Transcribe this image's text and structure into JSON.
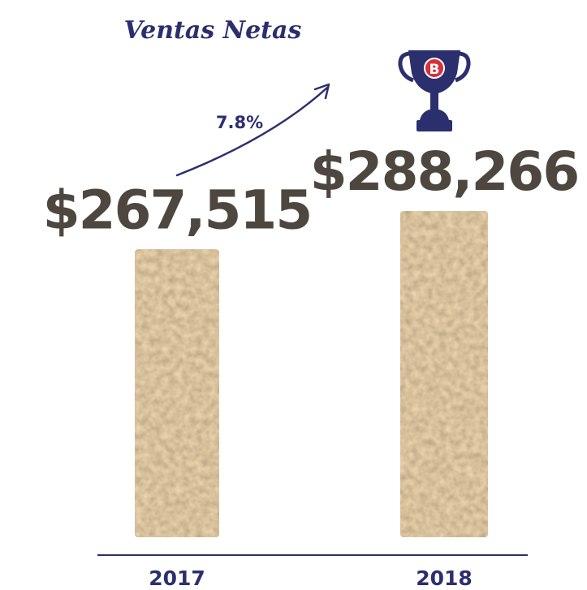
{
  "colors": {
    "navy": "#2c2f6e",
    "bar_fill": "#b9966b",
    "bar_light": "#ddc59f",
    "bar_dark": "#7d6447",
    "value_text": "#4d4740",
    "trophy_badge": "#d7303a"
  },
  "trophy": {
    "icon": "trophy-icon",
    "badge_letter": "B"
  },
  "chart_data": {
    "type": "bar",
    "title": "Ventas Netas",
    "categories": [
      "2017",
      "2018"
    ],
    "values": [
      267515,
      288266
    ],
    "value_labels": [
      "$267,515",
      "$288,266"
    ],
    "growth_label": "7.8%",
    "ylim": [
      0,
      288266
    ],
    "grid": false,
    "legend": "none",
    "xlabel": "",
    "ylabel": ""
  }
}
